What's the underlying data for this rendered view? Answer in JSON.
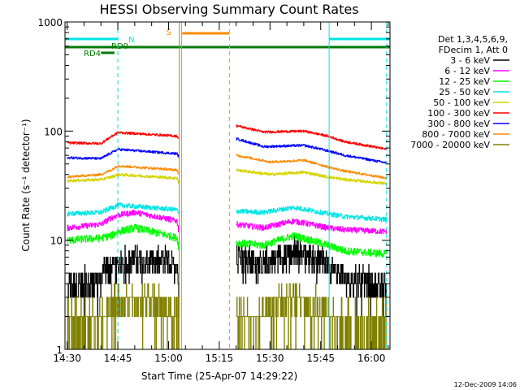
{
  "chart_data": {
    "type": "line",
    "title": "HESSI Observing Summary Count Rates",
    "xlabel": "Start Time (25-Apr-07 14:29:22)",
    "ylabel": "Count Rate (s⁻¹ detector⁻¹)",
    "y_scale": "log",
    "ylim": [
      1,
      1000
    ],
    "xlim": [
      "14:29:22",
      "16:05:30"
    ],
    "x_ticks": [
      "14:30",
      "14:45",
      "15:00",
      "15:15",
      "15:30",
      "15:45",
      "16:00"
    ],
    "y_ticks": [
      "1",
      "10",
      "100",
      "1000"
    ],
    "legend_header": [
      "Det 1,3,4,5,6,9,",
      "FDecim 1, Att 0"
    ],
    "legend_position": "right",
    "footer_date": "12-Dec-2009 14:06",
    "grid": false,
    "bars": [
      {
        "label": "N",
        "color": "#00e5e5",
        "segments": [
          [
            "14:29:22",
            "14:45:00"
          ],
          [
            "15:47:30",
            "16:05:30"
          ]
        ]
      },
      {
        "label": "RD0",
        "color": "#007a00",
        "segments": [
          [
            "14:29:22",
            "16:05:30"
          ]
        ]
      },
      {
        "label": "RD4",
        "color": "#007a00",
        "segments": [
          [
            "14:40:00",
            "14:44:00"
          ]
        ]
      },
      {
        "label": "S",
        "color": "#ff8c00",
        "segments": [
          [
            "15:04:00",
            "15:18:00"
          ]
        ]
      }
    ],
    "markers": [
      {
        "time": "14:45:00",
        "color": "#00e5e5",
        "style": "dashed"
      },
      {
        "time": "15:47:30",
        "color": "#00e5e5",
        "style": "solid"
      },
      {
        "time": "16:04:30",
        "color": "#00e5e5",
        "style": "dashed"
      },
      {
        "time": "15:03:10",
        "color": "#b8860b",
        "style": "solid"
      },
      {
        "time": "15:03:50",
        "color": "#ff8c00",
        "style": "solid"
      },
      {
        "time": "15:18:00",
        "color": "#ff8c00",
        "style": "dashed"
      }
    ],
    "data_gap": [
      "15:03:00",
      "15:20:00"
    ],
    "series": [
      {
        "name": "3 - 6 keV",
        "color": "#000000",
        "noise": 0.28,
        "quantized": true,
        "points": [
          [
            "14:30:00",
            3.8
          ],
          [
            "14:40:00",
            4.2
          ],
          [
            "14:41:00",
            5.5
          ],
          [
            "14:50:00",
            6.5
          ],
          [
            "15:02:30",
            6.0
          ],
          [
            "15:03:00",
            3.5
          ],
          [
            "15:20:00",
            7.5
          ],
          [
            "15:27:00",
            6.0
          ],
          [
            "15:38:00",
            8.0
          ],
          [
            "15:47:00",
            6.0
          ],
          [
            "15:52:00",
            4.5
          ],
          [
            "16:04:30",
            3.6
          ]
        ]
      },
      {
        "name": "6 - 12 keV",
        "color": "#ff00ff",
        "noise": 0.06,
        "points": [
          [
            "14:30:00",
            13
          ],
          [
            "14:40:00",
            14
          ],
          [
            "14:43:00",
            16
          ],
          [
            "14:45:00",
            17
          ],
          [
            "14:50:00",
            18
          ],
          [
            "15:02:30",
            15
          ],
          [
            "15:03:00",
            12
          ],
          [
            "15:20:00",
            14
          ],
          [
            "15:28:00",
            13
          ],
          [
            "15:37:00",
            15
          ],
          [
            "15:47:00",
            13
          ],
          [
            "15:52:00",
            12.5
          ],
          [
            "16:04:30",
            12
          ]
        ]
      },
      {
        "name": "12 - 25 keV",
        "color": "#00ff00",
        "noise": 0.08,
        "points": [
          [
            "14:30:00",
            10
          ],
          [
            "14:40:00",
            10.5
          ],
          [
            "14:43:00",
            11
          ],
          [
            "14:45:00",
            12
          ],
          [
            "14:50:00",
            13
          ],
          [
            "15:02:30",
            10.5
          ],
          [
            "15:03:00",
            8.5
          ],
          [
            "15:20:00",
            9.5
          ],
          [
            "15:28:00",
            9
          ],
          [
            "15:37:00",
            11
          ],
          [
            "15:47:00",
            9
          ],
          [
            "15:52:00",
            8
          ],
          [
            "16:04:30",
            7.5
          ]
        ]
      },
      {
        "name": "25 - 50 keV",
        "color": "#00e5e5",
        "noise": 0.05,
        "points": [
          [
            "14:30:00",
            17.5
          ],
          [
            "14:40:00",
            18
          ],
          [
            "14:45:00",
            21
          ],
          [
            "15:02:30",
            19
          ],
          [
            "15:03:00",
            17
          ],
          [
            "15:20:00",
            18.5
          ],
          [
            "15:28:00",
            18
          ],
          [
            "15:37:00",
            20
          ],
          [
            "15:47:00",
            17.5
          ],
          [
            "15:52:00",
            16.5
          ],
          [
            "16:04:30",
            15.5
          ]
        ]
      },
      {
        "name": "50 - 100 keV",
        "color": "#d4d400",
        "noise": 0.03,
        "points": [
          [
            "14:30:00",
            35
          ],
          [
            "14:40:00",
            36
          ],
          [
            "14:43:00",
            38
          ],
          [
            "14:45:00",
            40
          ],
          [
            "15:02:30",
            37
          ],
          [
            "15:03:00",
            33
          ],
          [
            "15:20:00",
            44
          ],
          [
            "15:30:00",
            40
          ],
          [
            "15:40:00",
            42
          ],
          [
            "15:47:00",
            38
          ],
          [
            "15:52:00",
            36
          ],
          [
            "16:04:30",
            33
          ]
        ]
      },
      {
        "name": "100 - 300 keV",
        "color": "#ff0000",
        "noise": 0.025,
        "points": [
          [
            "14:30:00",
            78
          ],
          [
            "14:40:00",
            77
          ],
          [
            "14:45:00",
            97
          ],
          [
            "15:02:30",
            90
          ],
          [
            "15:03:00",
            85
          ],
          [
            "15:20:00",
            112
          ],
          [
            "15:28:00",
            98
          ],
          [
            "15:40:00",
            100
          ],
          [
            "15:47:00",
            90
          ],
          [
            "15:52:00",
            80
          ],
          [
            "16:04:30",
            68
          ]
        ]
      },
      {
        "name": "300 - 800 keV",
        "color": "#0000ff",
        "noise": 0.025,
        "points": [
          [
            "14:30:00",
            57
          ],
          [
            "14:40:00",
            56
          ],
          [
            "14:45:00",
            68
          ],
          [
            "15:02:30",
            62
          ],
          [
            "15:03:00",
            58
          ],
          [
            "15:20:00",
            85
          ],
          [
            "15:28:00",
            72
          ],
          [
            "15:40:00",
            74
          ],
          [
            "15:47:00",
            66
          ],
          [
            "15:52:00",
            60
          ],
          [
            "16:04:30",
            51
          ]
        ]
      },
      {
        "name": "800 - 7000 keV",
        "color": "#ff8c00",
        "noise": 0.025,
        "points": [
          [
            "14:30:00",
            38
          ],
          [
            "14:40:00",
            40
          ],
          [
            "14:43:00",
            44
          ],
          [
            "14:45:00",
            48
          ],
          [
            "15:02:30",
            44
          ],
          [
            "15:03:00",
            40
          ],
          [
            "15:20:00",
            60
          ],
          [
            "15:30:00",
            52
          ],
          [
            "15:40:00",
            54
          ],
          [
            "15:47:00",
            47
          ],
          [
            "15:52:00",
            43
          ],
          [
            "16:04:30",
            37
          ]
        ]
      },
      {
        "name": "7000 - 20000 keV",
        "color": "#808000",
        "noise": 0.2,
        "quantized": true,
        "points": [
          [
            "14:30:00",
            1.5
          ],
          [
            "14:40:00",
            1.8
          ],
          [
            "14:45:00",
            2.5
          ],
          [
            "14:50:00",
            3.0
          ],
          [
            "15:02:30",
            2.0
          ],
          [
            "15:03:00",
            1.5
          ],
          [
            "15:20:00",
            1.6
          ],
          [
            "15:28:00",
            2.0
          ],
          [
            "15:37:00",
            3.0
          ],
          [
            "15:47:00",
            2.0
          ],
          [
            "15:52:00",
            1.5
          ],
          [
            "16:04:30",
            1.5
          ]
        ]
      }
    ]
  }
}
